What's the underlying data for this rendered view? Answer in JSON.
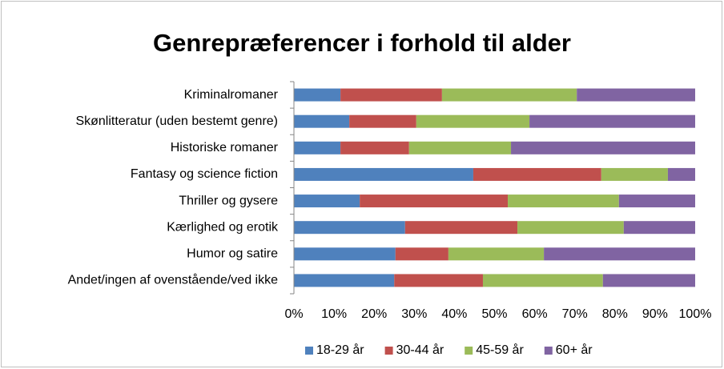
{
  "chart_data": {
    "type": "stacked-bar-horizontal",
    "title": "Genrepræferencer i forhold til alder",
    "categories": [
      "Kriminalromaner",
      "Skønlitteratur (uden bestemt genre)",
      "Historiske romaner",
      "Fantasy og science fiction",
      "Thriller og gysere",
      "Kærlighed og erotik",
      "Humor og satire",
      "Andet/ingen af ovenstående/ved ikke"
    ],
    "series": [
      {
        "name": "18-29 år",
        "color": "#4f81bd",
        "values": [
          11.6,
          13.8,
          11.6,
          44.7,
          16.4,
          27.7,
          25.3,
          25.0
        ]
      },
      {
        "name": "30-44 år",
        "color": "#c0504d",
        "values": [
          25.3,
          16.7,
          17.1,
          31.9,
          36.9,
          28.0,
          13.2,
          22.1
        ]
      },
      {
        "name": "45-59 år",
        "color": "#9bbb59",
        "values": [
          33.6,
          28.2,
          25.4,
          16.6,
          27.7,
          26.5,
          23.8,
          29.9
        ]
      },
      {
        "name": "60+ år",
        "color": "#8064a2",
        "values": [
          29.5,
          41.3,
          45.9,
          6.8,
          19.0,
          17.8,
          37.7,
          23.0
        ]
      }
    ],
    "xlim": [
      0,
      100
    ],
    "xticks": [
      {
        "value": 0,
        "label": "0%"
      },
      {
        "value": 10,
        "label": "10%"
      },
      {
        "value": 20,
        "label": "20%"
      },
      {
        "value": 30,
        "label": "30%"
      },
      {
        "value": 40,
        "label": "40%"
      },
      {
        "value": 50,
        "label": "50%"
      },
      {
        "value": 60,
        "label": "60%"
      },
      {
        "value": 70,
        "label": "70%"
      },
      {
        "value": 80,
        "label": "80%"
      },
      {
        "value": 90,
        "label": "90%"
      },
      {
        "value": 100,
        "label": "100%"
      }
    ],
    "grid": false,
    "legend": "bottom"
  }
}
